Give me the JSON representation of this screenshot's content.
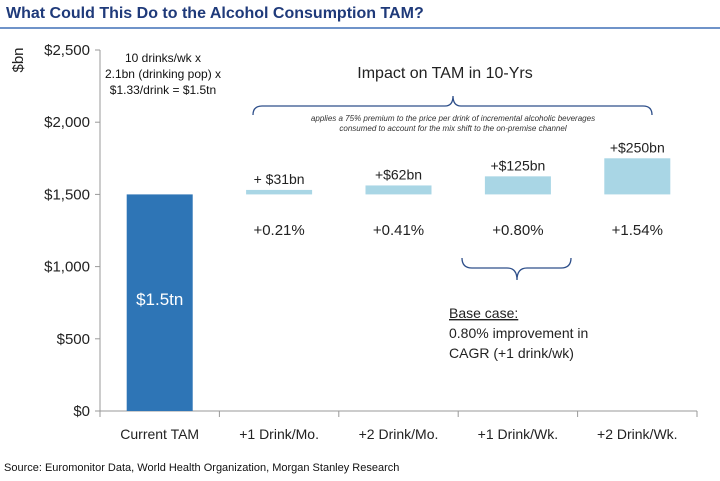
{
  "page": {
    "title": "What Could This Do to the Alcohol Consumption TAM?",
    "source": "Source: Euromonitor Data, World Health Organization, Morgan Stanley Research"
  },
  "chart_data": {
    "type": "bar",
    "ylabel": "$bn",
    "ylim": [
      0,
      2500
    ],
    "yticks": [
      0,
      500,
      1000,
      1500,
      2000,
      2500
    ],
    "ytick_labels": [
      "$0",
      "$500",
      "$1,000",
      "$1,500",
      "$2,000",
      "$2,500"
    ],
    "categories": [
      "Current TAM",
      "+1 Drink/Mo.",
      "+2 Drink/Mo.",
      "+1 Drink/Wk.",
      "+2 Drink/Wk."
    ],
    "base_value": 1500,
    "base_label": "$1.5tn",
    "increments": [
      31,
      62,
      125,
      250
    ],
    "increment_labels": [
      "+ $31bn",
      "+$62bn",
      "+$125bn",
      "+$250bn"
    ],
    "pct_labels": [
      "+0.21%",
      "+0.41%",
      "+0.80%",
      "+1.54%"
    ],
    "colors": {
      "base": "#2e75b6",
      "increment": "#a9d6e5",
      "text": "#222222",
      "axis": "#999999"
    },
    "annotations": {
      "formula": [
        "10 drinks/wk x",
        "2.1bn (drinking pop) x",
        "$1.33/drink = $1.5tn"
      ],
      "impact_title": "Impact on TAM in 10-Yrs",
      "premium_note": [
        "applies a 75% premium to the price per drink of incremental alcoholic beverages",
        "consumed to account for the mix shift to the on-premise channel"
      ],
      "base_case": [
        "Base case:",
        "0.80% improvement in",
        "CAGR (+1 drink/wk)"
      ]
    }
  }
}
